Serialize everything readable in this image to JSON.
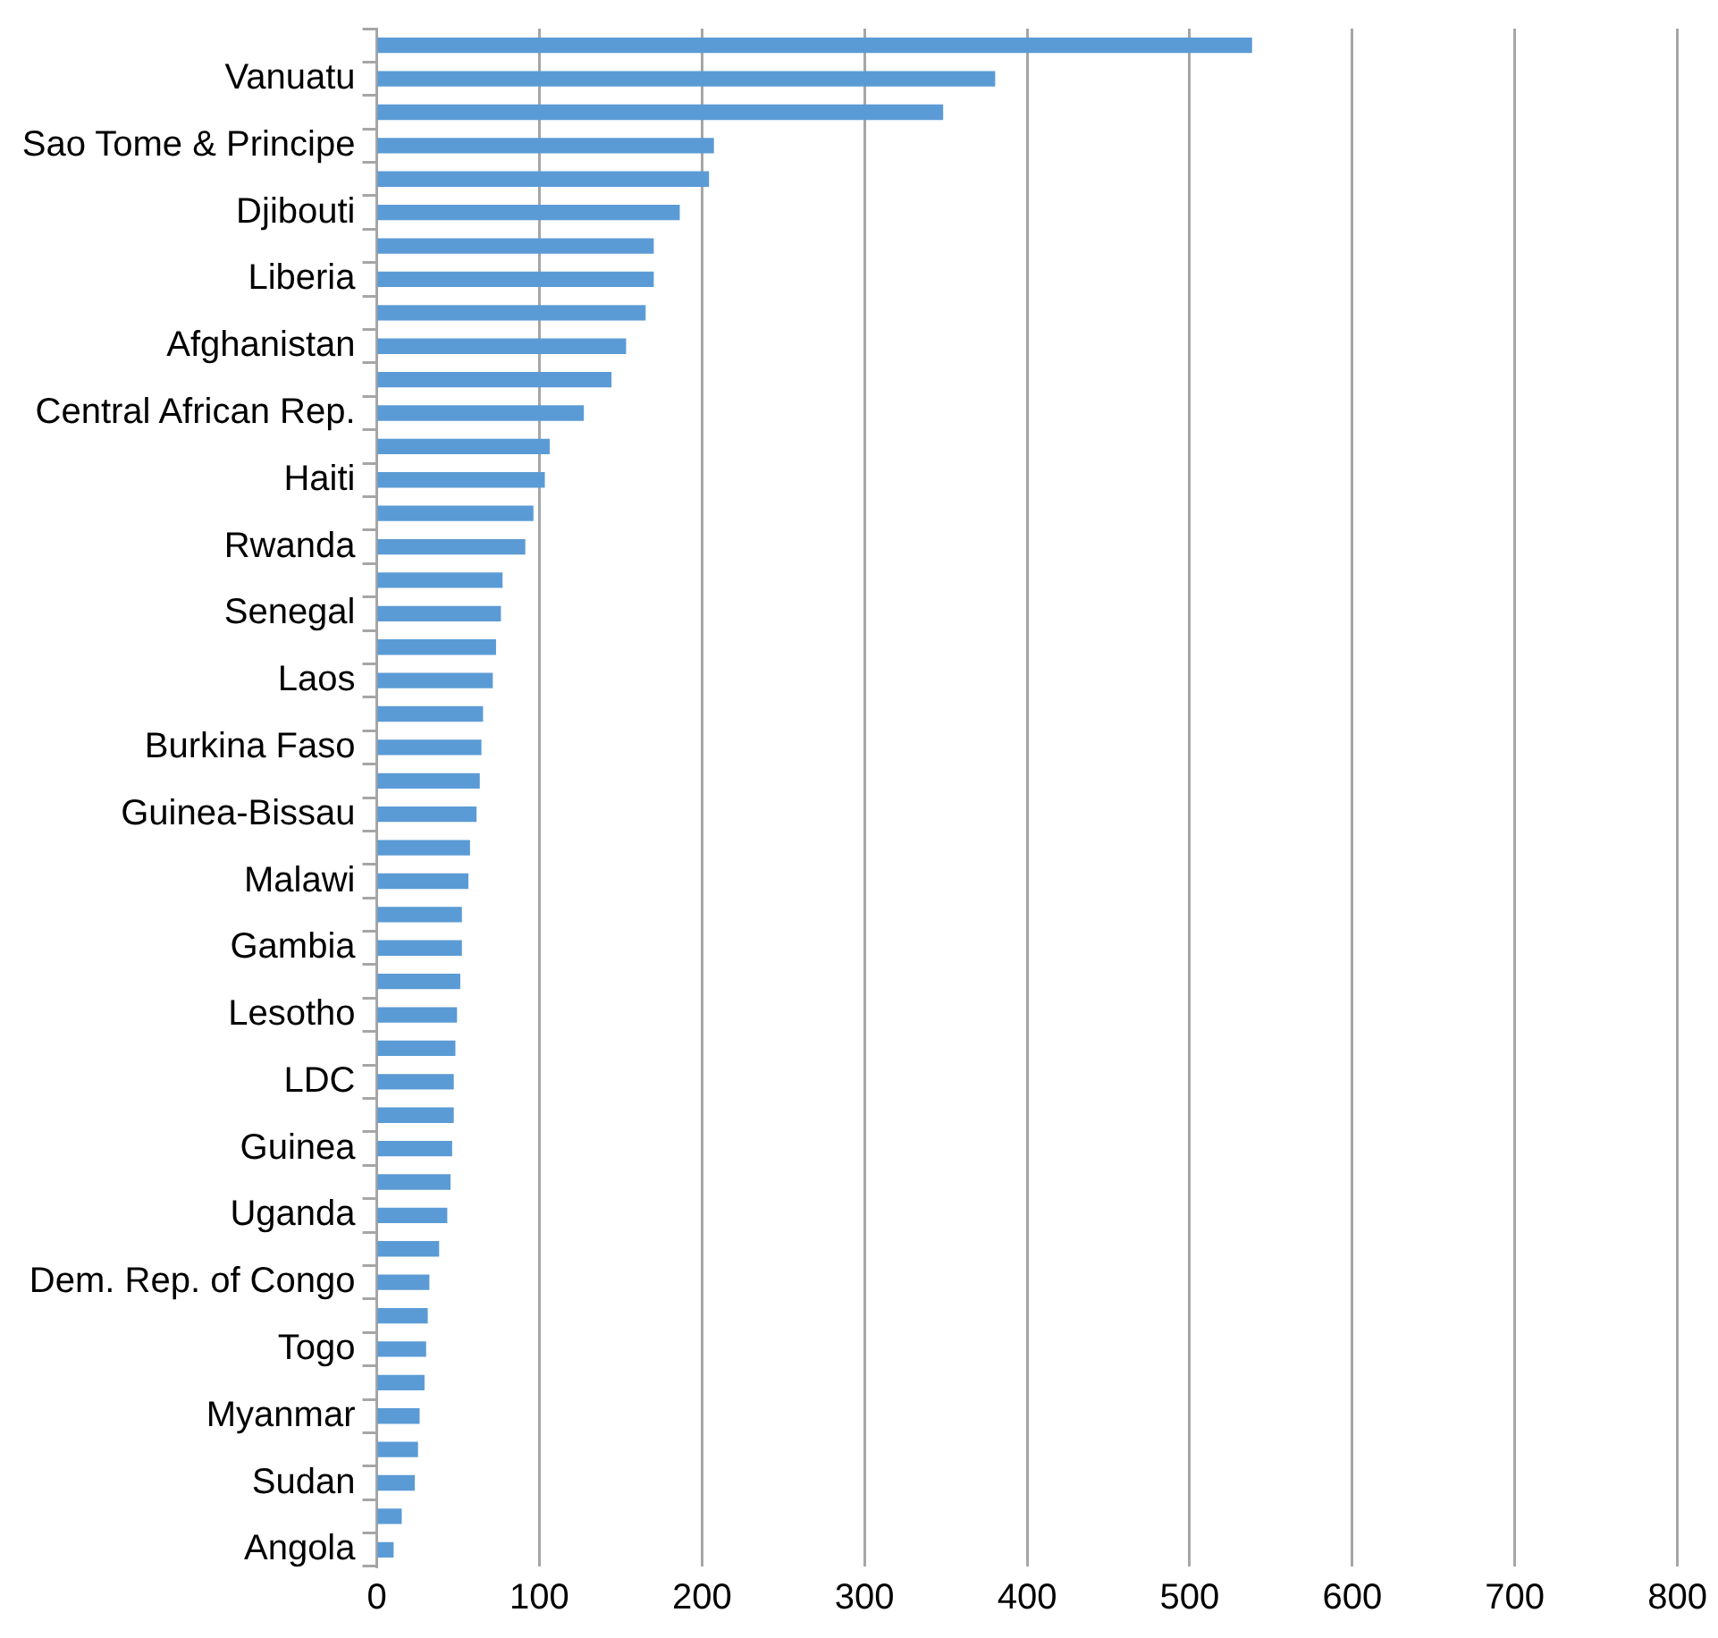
{
  "chart_data": {
    "type": "bar",
    "orientation": "horizontal",
    "color": "#5b9bd5",
    "categories": [
      null,
      "Vanuatu",
      null,
      "Sao Tome & Principe",
      null,
      "Djibouti",
      null,
      "Liberia",
      null,
      "Afghanistan",
      null,
      "Central African Rep.",
      null,
      "Haiti",
      null,
      "Rwanda",
      null,
      "Senegal",
      null,
      "Laos",
      null,
      "Burkina Faso",
      null,
      "Guinea-Bissau",
      null,
      "Malawi",
      null,
      "Gambia",
      null,
      "Lesotho",
      null,
      "LDC",
      null,
      "Guinea",
      null,
      "Uganda",
      null,
      "Dem. Rep. of Congo",
      null,
      "Togo",
      null,
      "Myanmar",
      null,
      "Sudan",
      null,
      "Angola"
    ],
    "values": [
      538,
      380,
      348,
      207,
      204,
      186,
      170,
      170,
      165,
      153,
      144,
      127,
      106,
      103,
      96,
      91,
      77,
      76,
      73,
      71,
      65,
      64,
      63,
      61,
      57,
      56,
      52,
      52,
      51,
      49,
      48,
      47,
      47,
      46,
      45,
      43,
      38,
      32,
      31,
      30,
      29,
      26,
      25,
      23,
      15,
      10
    ],
    "xlim": [
      0,
      800
    ],
    "xticks": [
      0,
      100,
      200,
      300,
      400,
      500,
      600,
      700,
      800
    ],
    "grid": "x"
  }
}
